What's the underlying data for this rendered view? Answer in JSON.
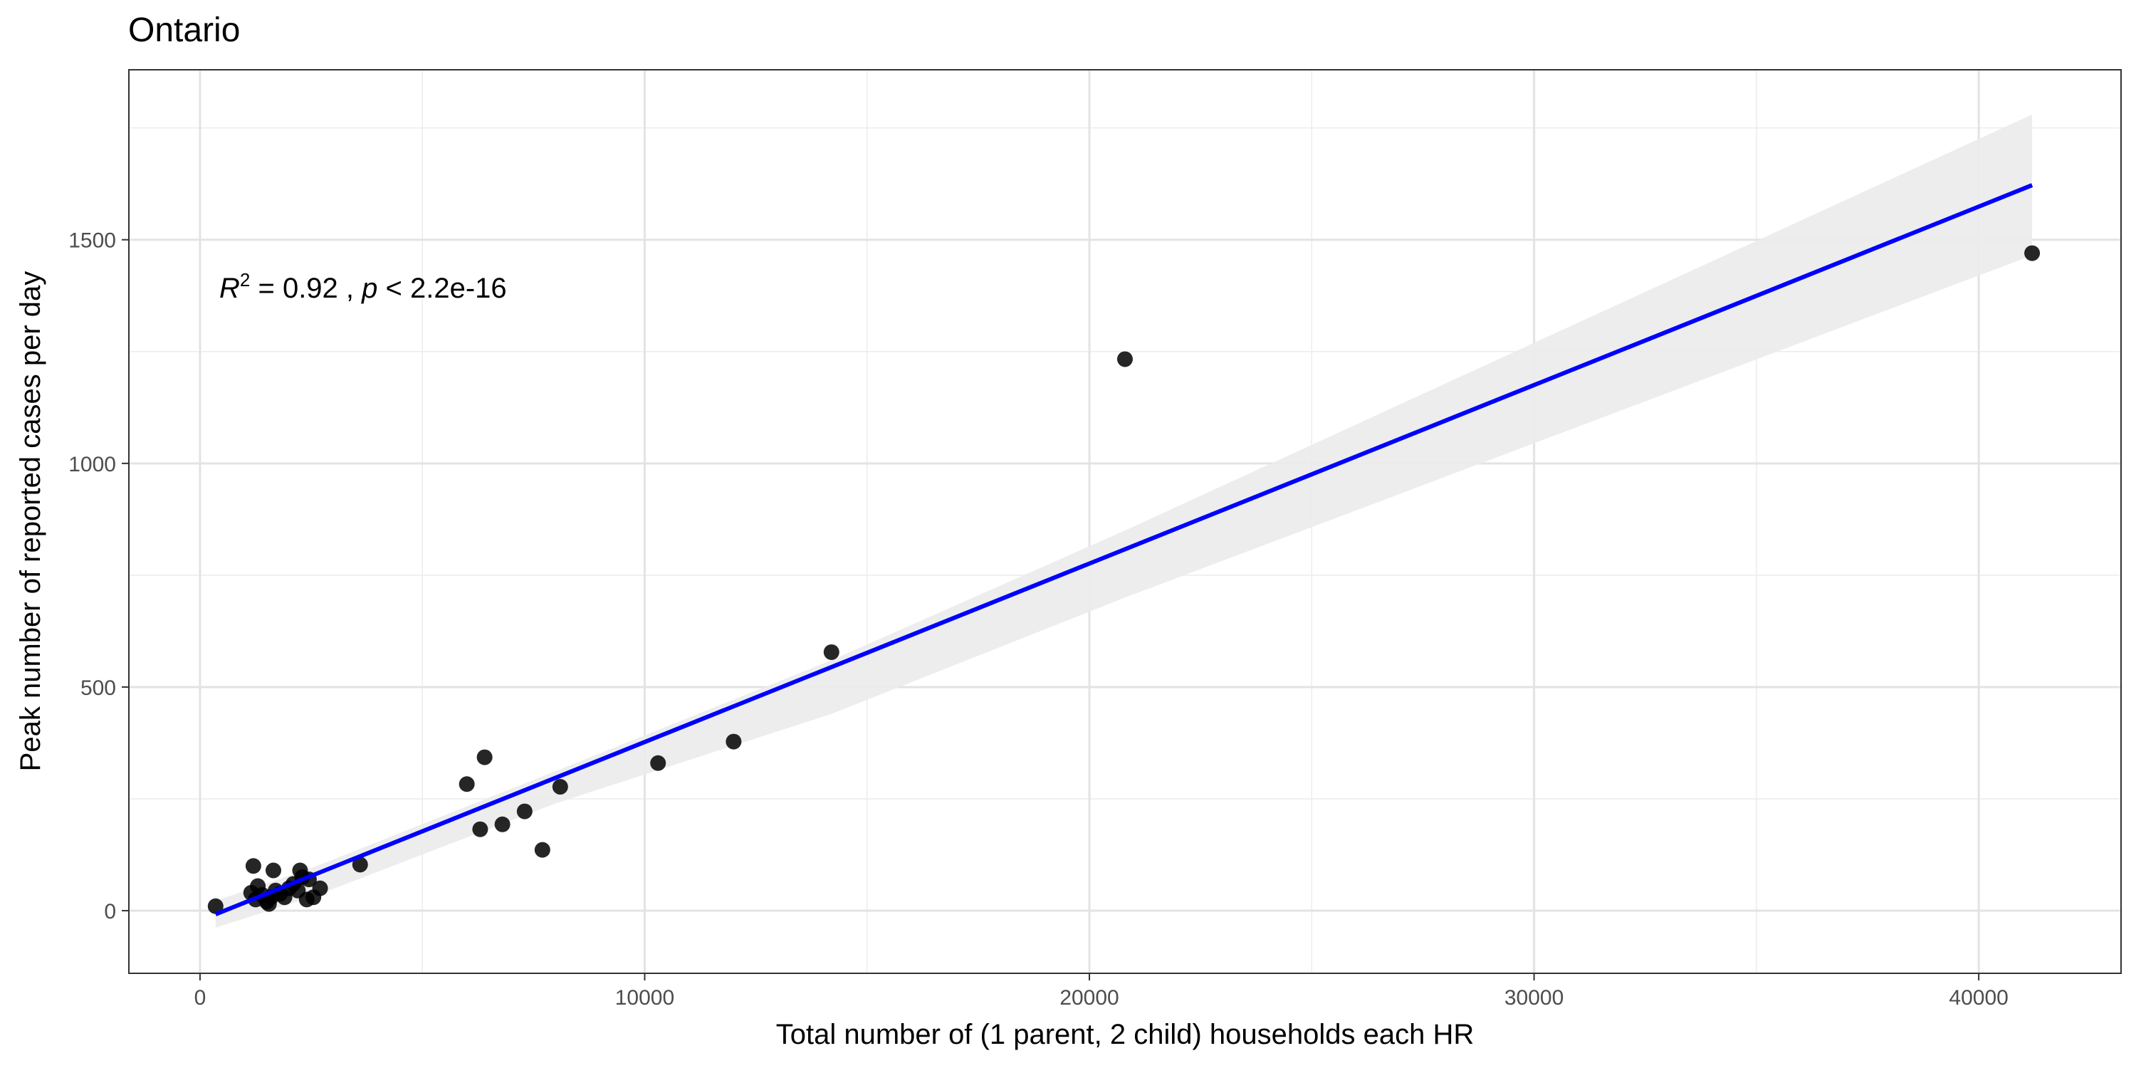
{
  "chart_data": {
    "type": "scatter",
    "title": "Ontario",
    "xlabel": "Total number of (1 parent, 2 child) households each HR",
    "ylabel": "Peak number of reported cases per day",
    "xlim": [
      -1600,
      43200
    ],
    "ylim": [
      -140,
      1880
    ],
    "x_ticks": [
      0,
      10000,
      20000,
      30000,
      40000
    ],
    "x_tick_labels": [
      "0",
      "10000",
      "20000",
      "30000",
      "40000"
    ],
    "y_ticks": [
      0,
      500,
      1000,
      1500
    ],
    "y_tick_labels": [
      "0",
      "500",
      "1000",
      "1500"
    ],
    "grid": true,
    "annotation": {
      "r_symbol": "R",
      "r_exponent": "2",
      "r_value_text": " = 0.92 , ",
      "p_symbol": "p",
      "p_value_text": " < 2.2e-16"
    },
    "points": [
      {
        "x": 350,
        "y": 10
      },
      {
        "x": 1200,
        "y": 100
      },
      {
        "x": 1150,
        "y": 40
      },
      {
        "x": 1250,
        "y": 25
      },
      {
        "x": 1300,
        "y": 55
      },
      {
        "x": 1400,
        "y": 35
      },
      {
        "x": 1500,
        "y": 20
      },
      {
        "x": 1550,
        "y": 15
      },
      {
        "x": 1600,
        "y": 30
      },
      {
        "x": 1650,
        "y": 90
      },
      {
        "x": 1700,
        "y": 45
      },
      {
        "x": 1800,
        "y": 38
      },
      {
        "x": 1900,
        "y": 30
      },
      {
        "x": 2000,
        "y": 50
      },
      {
        "x": 2100,
        "y": 60
      },
      {
        "x": 2200,
        "y": 45
      },
      {
        "x": 2250,
        "y": 90
      },
      {
        "x": 2300,
        "y": 75
      },
      {
        "x": 2400,
        "y": 25
      },
      {
        "x": 2450,
        "y": 70
      },
      {
        "x": 2550,
        "y": 30
      },
      {
        "x": 2700,
        "y": 50
      },
      {
        "x": 3600,
        "y": 103
      },
      {
        "x": 6000,
        "y": 283
      },
      {
        "x": 6300,
        "y": 182
      },
      {
        "x": 6400,
        "y": 343
      },
      {
        "x": 6800,
        "y": 193
      },
      {
        "x": 7300,
        "y": 222
      },
      {
        "x": 7700,
        "y": 136
      },
      {
        "x": 8100,
        "y": 277
      },
      {
        "x": 10300,
        "y": 330
      },
      {
        "x": 12000,
        "y": 378
      },
      {
        "x": 14200,
        "y": 578
      },
      {
        "x": 20800,
        "y": 1233
      },
      {
        "x": 41200,
        "y": 1470
      }
    ],
    "fit_line": {
      "x": [
        350,
        41200
      ],
      "y": [
        -8,
        1622
      ],
      "color": "#0000ff"
    },
    "confidence_band": {
      "x": [
        350,
        2500,
        8000,
        14200,
        20800,
        41200
      ],
      "upper": [
        22,
        95,
        312,
        560,
        850,
        1780
      ],
      "lower": [
        -38,
        30,
        240,
        440,
        700,
        1465
      ],
      "color": "#ebebeb"
    },
    "point_color": "#000000"
  }
}
